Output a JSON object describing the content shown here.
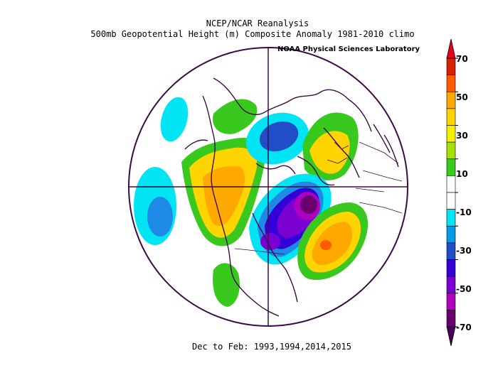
{
  "title_line1": "NCEP/NCAR Reanalysis",
  "title_line2": "500mb Geopotential Height (m) Composite Anomaly 1981-2010 climo",
  "credit": "NOAA Physical Sciences Laboratory",
  "footer": "Dec to Feb: 1993,1994,2014,2015",
  "colorbar": {
    "labels": [
      "70",
      "50",
      "30",
      "10",
      "-10",
      "-30",
      "-50",
      "-70"
    ],
    "colors": [
      "#d62000",
      "#ff5a00",
      "#ffa800",
      "#ffd400",
      "#f6f000",
      "#a8e000",
      "#39c81e",
      "#ffffff",
      "#ffffff",
      "#00e4f4",
      "#009ae6",
      "#1f4ec8",
      "#3400d8",
      "#7a00d2",
      "#b000bf",
      "#6a0070"
    ],
    "arrow_top": "#e8001e",
    "arrow_bottom": "#4a005a"
  }
}
